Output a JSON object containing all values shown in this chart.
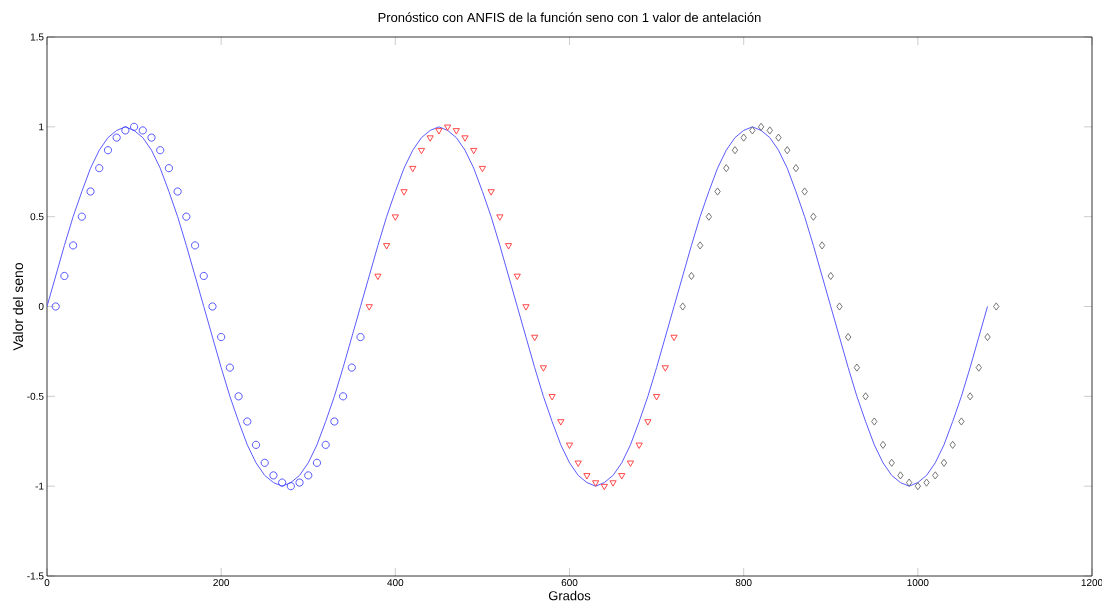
{
  "chart_data": {
    "type": "scatter",
    "title": "Pronóstico con ANFIS de la función seno con 1 valor de antelación",
    "xlabel": "Grados",
    "ylabel": "Valor del seno",
    "xlim": [
      0,
      1200
    ],
    "xticks": [
      0,
      200,
      400,
      600,
      800,
      1000,
      1200
    ],
    "ylim": [
      -1.5,
      1.5
    ],
    "yticks": [
      -1.5,
      -1,
      -0.5,
      0,
      0.5,
      1,
      1.5
    ],
    "series": [
      {
        "type": "line",
        "color": "#5a5aff",
        "marker": "none",
        "line_style": "solid",
        "x": [
          0,
          10,
          20,
          30,
          40,
          50,
          60,
          70,
          80,
          90,
          100,
          110,
          120,
          130,
          140,
          150,
          160,
          170,
          180,
          190,
          200,
          210,
          220,
          230,
          240,
          250,
          260,
          270,
          280,
          290,
          300,
          310,
          320,
          330,
          340,
          350,
          360,
          370,
          380,
          390,
          400,
          410,
          420,
          430,
          440,
          450,
          460,
          470,
          480,
          490,
          500,
          510,
          520,
          530,
          540,
          550,
          560,
          570,
          580,
          590,
          600,
          610,
          620,
          630,
          640,
          650,
          660,
          670,
          680,
          690,
          700,
          710,
          720,
          730,
          740,
          750,
          760,
          770,
          780,
          790,
          800,
          810,
          820,
          830,
          840,
          850,
          860,
          870,
          880,
          890,
          900,
          910,
          920,
          930,
          940,
          950,
          960,
          970,
          980,
          990,
          1000,
          1010,
          1020,
          1030,
          1040,
          1050,
          1060,
          1070,
          1080
        ],
        "values": [
          0,
          0.17,
          0.34,
          0.5,
          0.64,
          0.77,
          0.87,
          0.94,
          0.98,
          1,
          0.98,
          0.94,
          0.87,
          0.77,
          0.64,
          0.5,
          0.34,
          0.17,
          0,
          -0.17,
          -0.34,
          -0.5,
          -0.64,
          -0.77,
          -0.87,
          -0.94,
          -0.98,
          -1,
          -0.98,
          -0.94,
          -0.87,
          -0.77,
          -0.64,
          -0.5,
          -0.34,
          -0.17,
          0,
          0.17,
          0.34,
          0.5,
          0.64,
          0.77,
          0.87,
          0.94,
          0.98,
          1,
          0.98,
          0.94,
          0.87,
          0.77,
          0.64,
          0.5,
          0.34,
          0.17,
          0,
          -0.17,
          -0.34,
          -0.5,
          -0.64,
          -0.77,
          -0.87,
          -0.94,
          -0.98,
          -1,
          -0.98,
          -0.94,
          -0.87,
          -0.77,
          -0.64,
          -0.5,
          -0.34,
          -0.17,
          0,
          0.17,
          0.34,
          0.5,
          0.64,
          0.77,
          0.87,
          0.94,
          0.98,
          1,
          0.98,
          0.94,
          0.87,
          0.77,
          0.64,
          0.5,
          0.34,
          0.17,
          0,
          -0.17,
          -0.34,
          -0.5,
          -0.64,
          -0.77,
          -0.87,
          -0.94,
          -0.98,
          -1,
          -0.98,
          -0.94,
          -0.87,
          -0.77,
          -0.64,
          -0.5,
          -0.34,
          -0.17,
          0
        ]
      },
      {
        "color": "#4444ff",
        "marker": "circle",
        "x": [
          10,
          20,
          30,
          40,
          50,
          60,
          70,
          80,
          90,
          100,
          110,
          120,
          130,
          140,
          150,
          160,
          170,
          180,
          190,
          200,
          210,
          220,
          230,
          240,
          250,
          260,
          270,
          280,
          290,
          300,
          310,
          320,
          330,
          340,
          350,
          360
        ],
        "values": [
          0,
          0.17,
          0.34,
          0.5,
          0.64,
          0.77,
          0.87,
          0.94,
          0.98,
          1,
          0.98,
          0.94,
          0.87,
          0.77,
          0.64,
          0.5,
          0.34,
          0.17,
          0,
          -0.17,
          -0.34,
          -0.5,
          -0.64,
          -0.77,
          -0.87,
          -0.94,
          -0.98,
          -1,
          -0.98,
          -0.94,
          -0.87,
          -0.77,
          -0.64,
          -0.5,
          -0.34,
          -0.17
        ]
      },
      {
        "color": "#ff3333",
        "marker": "triangle",
        "x": [
          370,
          380,
          390,
          400,
          410,
          420,
          430,
          440,
          450,
          460,
          470,
          480,
          490,
          500,
          510,
          520,
          530,
          540,
          550,
          560,
          570,
          580,
          590,
          600,
          610,
          620,
          630,
          640,
          650,
          660,
          670,
          680,
          690,
          700,
          710,
          720
        ],
        "values": [
          0,
          0.17,
          0.34,
          0.5,
          0.64,
          0.77,
          0.87,
          0.94,
          0.98,
          1,
          0.98,
          0.94,
          0.87,
          0.77,
          0.64,
          0.5,
          0.34,
          0.17,
          0,
          -0.17,
          -0.34,
          -0.5,
          -0.64,
          -0.77,
          -0.87,
          -0.94,
          -0.98,
          -1,
          -0.98,
          -0.94,
          -0.87,
          -0.77,
          -0.64,
          -0.5,
          -0.34,
          -0.17
        ]
      },
      {
        "color": "#666666",
        "marker": "diamond",
        "x": [
          730,
          740,
          750,
          760,
          770,
          780,
          790,
          800,
          810,
          820,
          830,
          840,
          850,
          860,
          870,
          880,
          890,
          900,
          910,
          920,
          930,
          940,
          950,
          960,
          970,
          980,
          990,
          1000,
          1010,
          1020,
          1030,
          1040,
          1050,
          1060,
          1070,
          1080,
          1090
        ],
        "values": [
          0,
          0.17,
          0.34,
          0.5,
          0.64,
          0.77,
          0.87,
          0.94,
          0.98,
          1,
          0.98,
          0.94,
          0.87,
          0.77,
          0.64,
          0.5,
          0.34,
          0.17,
          0,
          -0.17,
          -0.34,
          -0.5,
          -0.64,
          -0.77,
          -0.87,
          -0.94,
          -0.98,
          -1,
          -0.98,
          -0.94,
          -0.87,
          -0.77,
          -0.64,
          -0.5,
          -0.34,
          -0.17,
          0
        ]
      }
    ]
  }
}
